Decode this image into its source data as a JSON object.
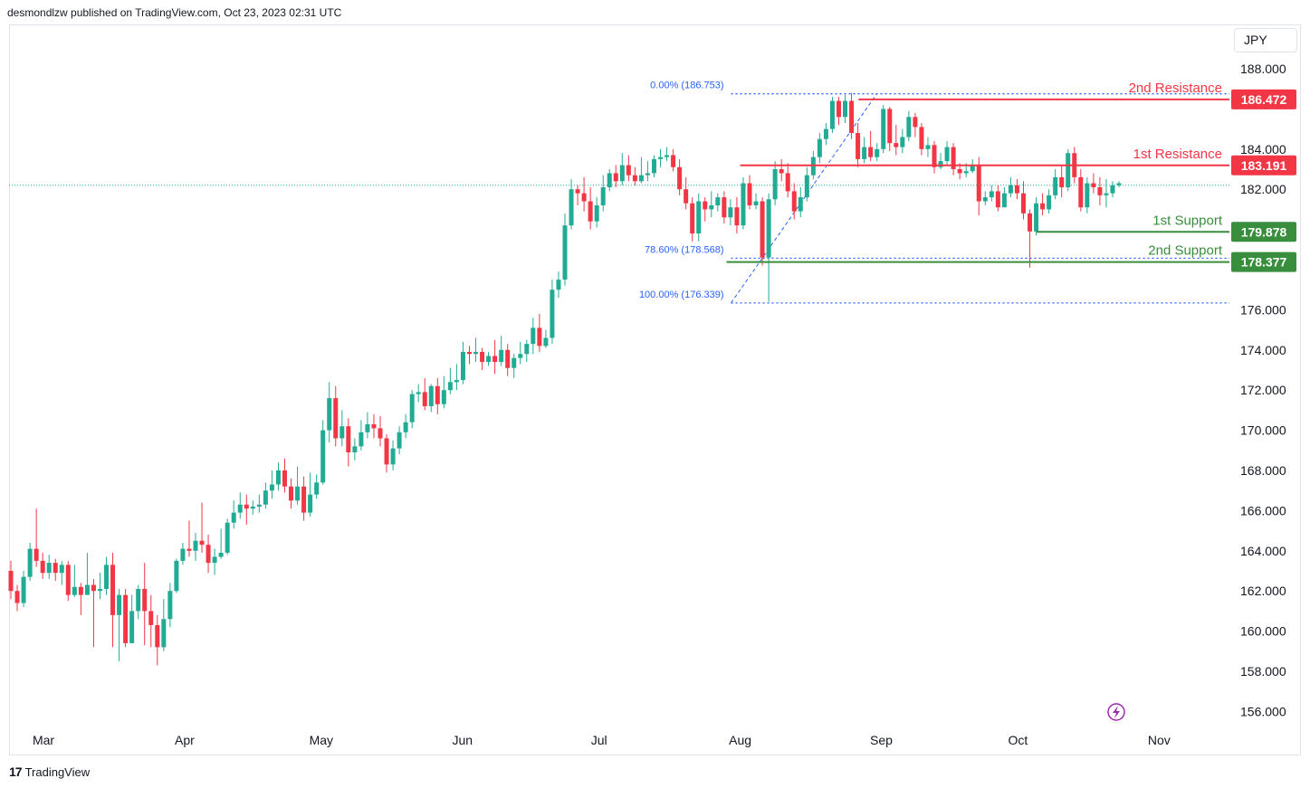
{
  "header": {
    "text": "desmondlzw published on TradingView.com, Oct 23, 2023 02:31 UTC"
  },
  "currency": "JPY",
  "footer": {
    "logo_glyph": "17",
    "brand": "TradingView"
  },
  "colors": {
    "up": "#22ab94",
    "down": "#f23645",
    "resistance": "#f23645",
    "support": "#388e3c",
    "fib": "#2962ff",
    "fib_text": "#2962ff"
  },
  "icons": {
    "replay": "lightning-icon"
  },
  "chart_data": {
    "type": "candlestick",
    "title": "",
    "ylim": [
      155,
      190
    ],
    "y_ticks": [
      "188.000",
      "184.000",
      "182.000",
      "176.000",
      "174.000",
      "172.000",
      "170.000",
      "168.000",
      "166.000",
      "164.000",
      "162.000",
      "160.000",
      "158.000",
      "156.000"
    ],
    "x_ticks": [
      {
        "label": "Mar",
        "day": 0
      },
      {
        "label": "Apr",
        "day": 31
      },
      {
        "label": "May",
        "day": 61
      },
      {
        "label": "Jun",
        "day": 92
      },
      {
        "label": "Jul",
        "day": 122
      },
      {
        "label": "Aug",
        "day": 153
      },
      {
        "label": "Sep",
        "day": 184
      },
      {
        "label": "Oct",
        "day": 214
      },
      {
        "label": "Nov",
        "day": 245
      }
    ],
    "last_price": 182.2,
    "levels": [
      {
        "name": "2nd Resistance",
        "value": "186.472",
        "kind": "resistance",
        "start_day": 179
      },
      {
        "name": "1st Resistance",
        "value": "183.191",
        "kind": "resistance",
        "start_day": 153
      },
      {
        "name": "1st Support",
        "value": "179.878",
        "kind": "support",
        "start_day": 218
      },
      {
        "name": "2nd Support",
        "value": "178.377",
        "kind": "support",
        "start_day": 150
      }
    ],
    "fib_levels": [
      {
        "label": "0.00% (186.753)",
        "value": 186.753
      },
      {
        "label": "78.60% (178.568)",
        "value": 178.568
      },
      {
        "label": "100.00% (176.339)",
        "value": 176.339
      }
    ],
    "fib_trend": {
      "from_day": 151,
      "from_value": 176.339,
      "to_day": 183,
      "to_value": 186.753
    },
    "candles": [
      [
        163.0,
        162.0,
        163.5,
        161.6
      ],
      [
        162.0,
        161.4,
        162.3,
        161.0
      ],
      [
        161.4,
        162.7,
        163.0,
        161.2
      ],
      [
        162.7,
        164.1,
        164.4,
        162.5
      ],
      [
        164.1,
        163.5,
        166.1,
        163.2
      ],
      [
        163.5,
        162.9,
        163.9,
        162.6
      ],
      [
        162.9,
        163.4,
        163.8,
        162.6
      ],
      [
        163.4,
        162.9,
        163.6,
        162.5
      ],
      [
        162.9,
        163.3,
        163.5,
        162.3
      ],
      [
        163.3,
        161.8,
        163.5,
        161.5
      ],
      [
        161.8,
        162.2,
        163.3,
        161.7
      ],
      [
        162.2,
        161.8,
        162.4,
        160.8
      ],
      [
        161.8,
        162.3,
        163.9,
        161.9
      ],
      [
        162.3,
        162.0,
        162.6,
        159.2
      ],
      [
        162.0,
        162.1,
        162.9,
        161.6
      ],
      [
        162.1,
        163.3,
        163.7,
        161.8
      ],
      [
        163.3,
        160.8,
        163.9,
        159.2
      ],
      [
        160.8,
        161.8,
        162.1,
        158.5
      ],
      [
        161.8,
        159.4,
        162.1,
        159.2
      ],
      [
        159.4,
        161.0,
        161.8,
        159.6
      ],
      [
        161.0,
        162.1,
        162.3,
        160.6
      ],
      [
        162.1,
        161.0,
        163.4,
        159.3
      ],
      [
        161.0,
        160.3,
        161.8,
        159.2
      ],
      [
        160.3,
        159.2,
        160.8,
        158.3
      ],
      [
        159.2,
        160.6,
        161.6,
        159.0
      ],
      [
        160.6,
        162.0,
        162.4,
        160.2
      ],
      [
        162.0,
        163.5,
        163.6,
        161.9
      ],
      [
        163.5,
        164.1,
        164.4,
        163.3
      ],
      [
        164.1,
        164.0,
        165.5,
        163.7
      ],
      [
        164.0,
        164.5,
        164.9,
        163.5
      ],
      [
        164.5,
        164.3,
        166.4,
        163.9
      ],
      [
        164.3,
        163.4,
        164.8,
        162.9
      ],
      [
        163.4,
        163.7,
        164.1,
        162.8
      ],
      [
        163.7,
        163.9,
        165.1,
        163.6
      ],
      [
        163.9,
        165.4,
        165.6,
        163.8
      ],
      [
        165.4,
        165.9,
        166.5,
        165.1
      ],
      [
        165.9,
        166.3,
        166.9,
        165.6
      ],
      [
        166.3,
        166.1,
        166.8,
        165.3
      ],
      [
        166.1,
        166.2,
        166.5,
        165.8
      ],
      [
        166.2,
        166.3,
        166.8,
        165.9
      ],
      [
        166.3,
        167.0,
        167.4,
        166.1
      ],
      [
        167.0,
        167.3,
        168.0,
        166.6
      ],
      [
        167.3,
        168.0,
        168.4,
        167.0
      ],
      [
        168.0,
        167.2,
        168.6,
        166.9
      ],
      [
        167.2,
        166.5,
        167.6,
        166.1
      ],
      [
        166.5,
        167.2,
        168.2,
        166.3
      ],
      [
        167.2,
        165.9,
        167.7,
        165.5
      ],
      [
        165.9,
        166.8,
        167.9,
        165.7
      ],
      [
        166.8,
        167.4,
        167.8,
        166.6
      ],
      [
        167.4,
        170.0,
        170.5,
        167.3
      ],
      [
        170.0,
        171.6,
        172.4,
        169.4
      ],
      [
        171.6,
        169.6,
        172.2,
        169.2
      ],
      [
        169.6,
        170.2,
        171.0,
        169.2
      ],
      [
        170.2,
        168.9,
        170.6,
        168.2
      ],
      [
        168.9,
        169.2,
        169.6,
        168.5
      ],
      [
        169.2,
        169.9,
        170.5,
        169.0
      ],
      [
        169.9,
        170.3,
        170.9,
        169.6
      ],
      [
        170.3,
        170.1,
        170.8,
        169.6
      ],
      [
        170.1,
        169.6,
        170.7,
        169.2
      ],
      [
        169.6,
        168.3,
        169.8,
        167.9
      ],
      [
        168.3,
        169.1,
        169.5,
        168.0
      ],
      [
        169.1,
        169.9,
        170.2,
        168.8
      ],
      [
        169.9,
        170.4,
        170.8,
        169.6
      ],
      [
        170.4,
        171.8,
        172.0,
        170.1
      ],
      [
        171.8,
        171.9,
        172.3,
        171.4
      ],
      [
        171.9,
        171.2,
        172.6,
        171.0
      ],
      [
        171.2,
        172.2,
        172.3,
        170.9
      ],
      [
        172.2,
        171.3,
        172.6,
        170.8
      ],
      [
        171.3,
        172.0,
        172.7,
        171.1
      ],
      [
        172.0,
        172.4,
        173.1,
        171.8
      ],
      [
        172.4,
        172.5,
        173.3,
        172.0
      ],
      [
        172.5,
        173.9,
        174.4,
        172.3
      ],
      [
        173.9,
        173.8,
        174.2,
        173.3
      ],
      [
        173.8,
        173.9,
        174.6,
        173.4
      ],
      [
        173.9,
        173.4,
        174.1,
        173.0
      ],
      [
        173.4,
        173.7,
        173.9,
        173.2
      ],
      [
        173.7,
        173.4,
        174.5,
        172.8
      ],
      [
        173.4,
        174.0,
        174.7,
        173.2
      ],
      [
        174.0,
        173.1,
        174.3,
        172.7
      ],
      [
        173.1,
        173.6,
        173.8,
        172.6
      ],
      [
        173.6,
        173.8,
        174.4,
        173.3
      ],
      [
        173.8,
        174.3,
        174.5,
        173.4
      ],
      [
        174.3,
        175.1,
        175.6,
        173.8
      ],
      [
        175.1,
        174.2,
        175.8,
        173.9
      ],
      [
        174.2,
        174.6,
        175.0,
        174.1
      ],
      [
        174.6,
        177.0,
        177.5,
        174.3
      ],
      [
        177.0,
        177.5,
        177.9,
        176.6
      ],
      [
        177.5,
        180.2,
        180.8,
        177.2
      ],
      [
        180.2,
        182.0,
        182.5,
        180.0
      ],
      [
        182.0,
        181.8,
        182.2,
        181.2
      ],
      [
        181.8,
        181.4,
        182.6,
        180.9
      ],
      [
        181.4,
        180.4,
        182.1,
        180.0
      ],
      [
        180.4,
        181.2,
        181.6,
        180.1
      ],
      [
        181.2,
        182.1,
        182.7,
        180.9
      ],
      [
        182.1,
        182.8,
        183.0,
        181.9
      ],
      [
        182.8,
        182.4,
        183.2,
        182.1
      ],
      [
        182.4,
        183.2,
        183.8,
        182.2
      ],
      [
        183.2,
        182.7,
        183.7,
        182.4
      ],
      [
        182.7,
        182.4,
        183.1,
        182.2
      ],
      [
        182.4,
        182.7,
        183.6,
        182.3
      ],
      [
        182.7,
        182.8,
        183.4,
        182.4
      ],
      [
        182.8,
        183.5,
        183.7,
        182.6
      ],
      [
        183.5,
        183.6,
        184.0,
        183.1
      ],
      [
        183.6,
        183.7,
        184.1,
        183.4
      ],
      [
        183.7,
        183.1,
        184.0,
        182.9
      ],
      [
        183.1,
        182.0,
        183.5,
        181.7
      ],
      [
        182.0,
        181.3,
        182.6,
        181.0
      ],
      [
        181.3,
        179.8,
        181.6,
        179.4
      ],
      [
        179.8,
        181.4,
        181.8,
        179.4
      ],
      [
        181.4,
        181.0,
        181.6,
        180.4
      ],
      [
        181.0,
        181.2,
        181.9,
        180.6
      ],
      [
        181.2,
        181.6,
        181.8,
        180.9
      ],
      [
        181.6,
        180.6,
        181.9,
        180.3
      ],
      [
        180.6,
        181.1,
        181.5,
        180.2
      ],
      [
        181.1,
        180.2,
        181.6,
        179.8
      ],
      [
        180.2,
        182.3,
        182.6,
        180.0
      ],
      [
        182.3,
        181.2,
        182.7,
        181.0
      ],
      [
        181.2,
        181.4,
        181.8,
        181.0
      ],
      [
        181.4,
        178.6,
        181.6,
        178.2
      ],
      [
        178.6,
        181.5,
        181.8,
        176.4
      ],
      [
        181.5,
        183.0,
        183.4,
        181.2
      ],
      [
        183.0,
        182.8,
        183.5,
        182.4
      ],
      [
        182.8,
        181.9,
        183.3,
        181.6
      ],
      [
        181.9,
        180.9,
        182.3,
        180.5
      ],
      [
        180.9,
        181.6,
        182.1,
        180.6
      ],
      [
        181.6,
        182.7,
        183.1,
        181.4
      ],
      [
        182.7,
        183.6,
        183.9,
        182.5
      ],
      [
        183.6,
        184.5,
        184.8,
        183.3
      ],
      [
        184.5,
        185.0,
        185.3,
        184.2
      ],
      [
        185.0,
        186.4,
        186.6,
        184.8
      ],
      [
        186.4,
        185.6,
        186.6,
        185.2
      ],
      [
        185.6,
        186.4,
        186.7,
        185.3
      ],
      [
        186.4,
        184.8,
        186.8,
        184.5
      ],
      [
        184.8,
        183.5,
        185.3,
        183.1
      ],
      [
        183.5,
        184.1,
        184.6,
        183.3
      ],
      [
        184.1,
        183.6,
        184.9,
        183.4
      ],
      [
        183.6,
        184.0,
        184.3,
        183.4
      ],
      [
        184.0,
        186.0,
        186.2,
        183.8
      ],
      [
        186.0,
        184.3,
        186.1,
        183.9
      ],
      [
        184.3,
        184.1,
        185.2,
        183.7
      ],
      [
        184.1,
        184.6,
        185.0,
        183.8
      ],
      [
        184.6,
        185.6,
        185.9,
        184.4
      ],
      [
        185.6,
        185.1,
        185.8,
        184.6
      ],
      [
        185.1,
        184.0,
        185.3,
        183.7
      ],
      [
        184.0,
        184.2,
        184.6,
        183.6
      ],
      [
        184.2,
        183.1,
        184.4,
        182.8
      ],
      [
        183.1,
        183.4,
        183.8,
        183.0
      ],
      [
        183.4,
        184.1,
        184.4,
        183.2
      ],
      [
        184.1,
        183.0,
        184.3,
        182.7
      ],
      [
        183.0,
        182.8,
        183.3,
        182.5
      ],
      [
        182.8,
        182.9,
        183.3,
        182.6
      ],
      [
        182.9,
        183.2,
        183.5,
        182.8
      ],
      [
        183.2,
        181.4,
        183.6,
        180.7
      ],
      [
        181.4,
        181.6,
        181.9,
        181.2
      ],
      [
        181.6,
        181.9,
        182.2,
        181.4
      ],
      [
        181.9,
        181.1,
        182.2,
        180.9
      ],
      [
        181.1,
        181.8,
        182.1,
        181.3
      ],
      [
        181.8,
        182.2,
        182.6,
        181.6
      ],
      [
        182.2,
        181.8,
        182.5,
        181.5
      ],
      [
        181.8,
        180.8,
        182.4,
        180.5
      ],
      [
        180.8,
        179.9,
        181.0,
        178.1
      ],
      [
        179.9,
        181.3,
        181.6,
        179.7
      ],
      [
        181.3,
        181.0,
        181.8,
        180.7
      ],
      [
        181.0,
        181.7,
        182.0,
        180.8
      ],
      [
        181.7,
        182.6,
        183.0,
        181.5
      ],
      [
        182.6,
        182.1,
        183.2,
        181.6
      ],
      [
        182.1,
        183.8,
        184.0,
        181.9
      ],
      [
        183.8,
        182.6,
        184.1,
        182.3
      ],
      [
        182.6,
        181.1,
        183.0,
        180.9
      ],
      [
        181.1,
        182.3,
        182.6,
        180.8
      ],
      [
        182.3,
        182.1,
        182.8,
        181.8
      ],
      [
        182.1,
        181.7,
        182.6,
        181.2
      ],
      [
        181.7,
        181.8,
        182.5,
        181.1
      ],
      [
        181.8,
        182.2,
        182.4,
        181.6
      ],
      [
        182.2,
        182.3,
        182.4,
        182.1
      ]
    ]
  }
}
